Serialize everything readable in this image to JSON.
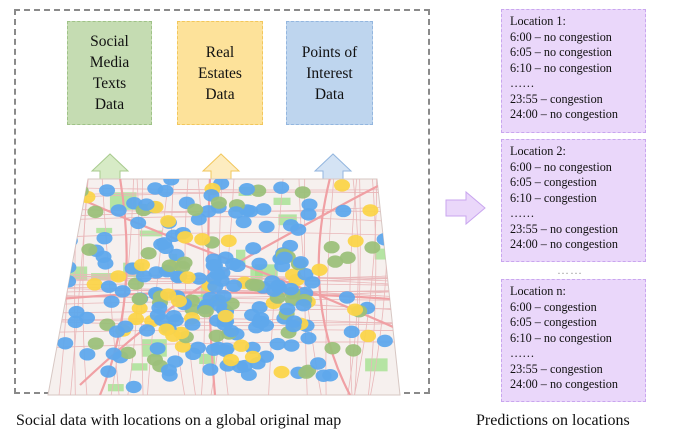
{
  "sources": [
    {
      "label": "Social\nMedia\nTexts\nData",
      "color": "#c5dcb2"
    },
    {
      "label": "Real\nEstates\nData",
      "color": "#fde29a"
    },
    {
      "label": "Points of\nInterest\nData",
      "color": "#bed5ee"
    }
  ],
  "predictions": [
    {
      "title": "Location 1:",
      "rows": [
        "6:00 – no congestion",
        "6:05 – no congestion",
        "6:10 – no congestion"
      ],
      "ellipsis": "……",
      "tail": [
        "23:55 – congestion",
        "24:00 – no congestion"
      ]
    },
    {
      "title": "Location 2:",
      "rows": [
        "6:00 – no congestion",
        "6:05 – congestion",
        "6:10 – congestion"
      ],
      "ellipsis": "……",
      "tail": [
        "23:55 – no congestion",
        "24:00 – no congestion"
      ]
    },
    {
      "title": "Location n:",
      "rows": [
        "6:00 – congestion",
        "6:05 – congestion",
        "6:10 – no congestion"
      ],
      "ellipsis": "……",
      "tail": [
        "23:55 – congestion",
        "24:00 – no congestion"
      ]
    }
  ],
  "between_ellipsis": "……",
  "captions": {
    "left": "Social data with locations on a global original map",
    "right": "Predictions on locations"
  },
  "colors": {
    "dot_blue": "#5fa8ec",
    "dot_green": "#9cc07a",
    "dot_yellow": "#fbd449",
    "panel": "#ead7fa"
  }
}
